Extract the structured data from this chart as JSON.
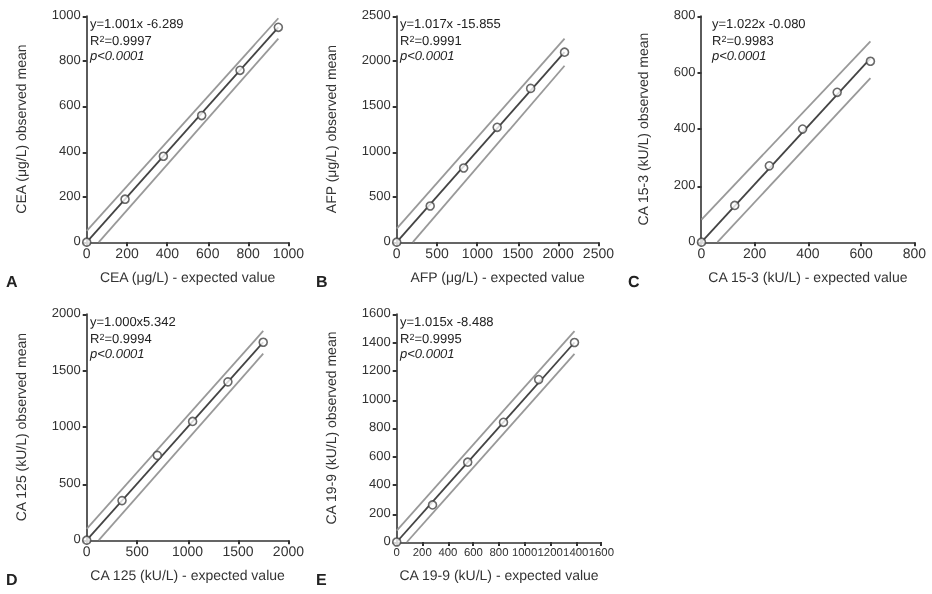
{
  "chart_data": [
    {
      "type": "scatter",
      "xlabel": "CEA (μg/L) - expected value",
      "ylabel": "CEA (μg/L) observed mean",
      "xlim": [
        0,
        1000
      ],
      "xticks": [
        0,
        200,
        400,
        600,
        800,
        1000
      ],
      "ylim": [
        0,
        1000
      ],
      "yticks": [
        0,
        200,
        400,
        600,
        800,
        1000
      ],
      "annotations": [
        "A",
        "y=1.001x -6.289",
        "R$^{2}$=0.9997",
        "p<0.0001"
      ],
      "series": [
        {
          "type": "line",
          "color": "#999999",
          "x": [
            0,
            950
          ],
          "values": [
            50,
            990
          ]
        },
        {
          "type": "line",
          "color": "#999999",
          "x": [
            60,
            950
          ],
          "values": [
            0,
            900
          ]
        },
        {
          "type": "line",
          "color": "#444444",
          "x": [
            0,
            950
          ],
          "values": [
            0,
            950
          ]
        },
        {
          "marker": "circle",
          "color": "#444444",
          "x": [
            0,
            190,
            380,
            570,
            760,
            950
          ],
          "values": [
            0,
            190,
            380,
            560,
            760,
            950
          ]
        }
      ]
    },
    {
      "type": "scatter",
      "xlabel": "AFP (μg/L) - expected value",
      "ylabel": "AFP (μg/L) observed mean",
      "xlim": [
        0,
        2500
      ],
      "xticks": [
        0,
        500,
        1000,
        1500,
        2000,
        2500
      ],
      "ylim": [
        0,
        2500
      ],
      "yticks": [
        0,
        500,
        1000,
        1500,
        2000,
        2500
      ],
      "annotations": [
        "B",
        "y=1.017x -15.855",
        "R$^{2}$=0.9991",
        "p<0.0001"
      ],
      "series": [
        {
          "type": "line",
          "color": "#999999",
          "x": [
            0,
            2080
          ],
          "values": [
            150,
            2250
          ]
        },
        {
          "type": "line",
          "color": "#999999",
          "x": [
            200,
            2080
          ],
          "values": [
            0,
            1950
          ]
        },
        {
          "type": "line",
          "color": "#444444",
          "x": [
            0,
            2080
          ],
          "values": [
            0,
            2100
          ]
        },
        {
          "marker": "circle",
          "color": "#444444",
          "x": [
            0,
            415,
            830,
            1245,
            1660,
            2080
          ],
          "values": [
            0,
            400,
            820,
            1270,
            1700,
            2100
          ]
        }
      ]
    },
    {
      "type": "scatter",
      "xlabel": "CA 15-3 (kU/L) - expected value",
      "ylabel": "CA 15-3 (kU/L) observed mean",
      "xlim": [
        0,
        800
      ],
      "xticks": [
        0,
        200,
        400,
        600,
        800
      ],
      "ylim": [
        0,
        800
      ],
      "yticks": [
        0,
        200,
        400,
        600,
        800
      ],
      "annotations": [
        "C",
        "y=1.022x -0.080",
        "R$^{2}$=0.9983",
        "p<0.0001"
      ],
      "series": [
        {
          "type": "line",
          "color": "#999999",
          "x": [
            0,
            635
          ],
          "values": [
            80,
            710
          ]
        },
        {
          "type": "line",
          "color": "#999999",
          "x": [
            60,
            635
          ],
          "values": [
            0,
            580
          ]
        },
        {
          "type": "line",
          "color": "#444444",
          "x": [
            0,
            635
          ],
          "values": [
            0,
            650
          ]
        },
        {
          "marker": "circle",
          "color": "#444444",
          "x": [
            0,
            125,
            255,
            380,
            510,
            635
          ],
          "values": [
            0,
            130,
            270,
            400,
            530,
            640
          ]
        }
      ]
    },
    {
      "type": "scatter",
      "xlabel": "CA 125 (kU/L) - expected value",
      "ylabel": "CA 125 (kU/L) observed mean",
      "xlim": [
        0,
        2000
      ],
      "xticks": [
        0,
        500,
        1000,
        1500,
        2000
      ],
      "ylim": [
        0,
        2000
      ],
      "yticks": [
        0,
        500,
        1000,
        1500,
        2000
      ],
      "annotations": [
        "D",
        "y=1.000x5.342",
        "R$^{2}$=0.9994",
        "p<0.0001"
      ],
      "series": [
        {
          "type": "line",
          "color": "#999999",
          "x": [
            0,
            1750
          ],
          "values": [
            100,
            1850
          ]
        },
        {
          "type": "line",
          "color": "#999999",
          "x": [
            120,
            1750
          ],
          "values": [
            0,
            1650
          ]
        },
        {
          "type": "line",
          "color": "#444444",
          "x": [
            0,
            1750
          ],
          "values": [
            0,
            1750
          ]
        },
        {
          "marker": "circle",
          "color": "#444444",
          "x": [
            0,
            350,
            700,
            1050,
            1400,
            1750
          ],
          "values": [
            0,
            350,
            750,
            1050,
            1400,
            1750
          ]
        }
      ]
    },
    {
      "type": "scatter",
      "xlabel": "CA 19-9 (kU/L) - expected value",
      "ylabel": "CA 19-9 (kU/L) observed mean",
      "xlim": [
        0,
        1600
      ],
      "xticks": [
        0,
        200,
        400,
        600,
        800,
        1000,
        1200,
        1400,
        1600
      ],
      "ylim": [
        0,
        1600
      ],
      "yticks": [
        0,
        200,
        400,
        600,
        800,
        1000,
        1200,
        1400,
        1600
      ],
      "annotations": [
        "E",
        "y=1.015x -8.488",
        "R$^{2}$=0.9995",
        "p<0.0001"
      ],
      "series": [
        {
          "type": "line",
          "color": "#999999",
          "x": [
            0,
            1390
          ],
          "values": [
            80,
            1480
          ]
        },
        {
          "type": "line",
          "color": "#999999",
          "x": [
            80,
            1390
          ],
          "values": [
            0,
            1320
          ]
        },
        {
          "type": "line",
          "color": "#444444",
          "x": [
            0,
            1390
          ],
          "values": [
            0,
            1400
          ]
        },
        {
          "marker": "circle",
          "color": "#444444",
          "x": [
            0,
            280,
            555,
            835,
            1110,
            1390
          ],
          "values": [
            0,
            260,
            560,
            840,
            1140,
            1400
          ]
        }
      ]
    }
  ]
}
